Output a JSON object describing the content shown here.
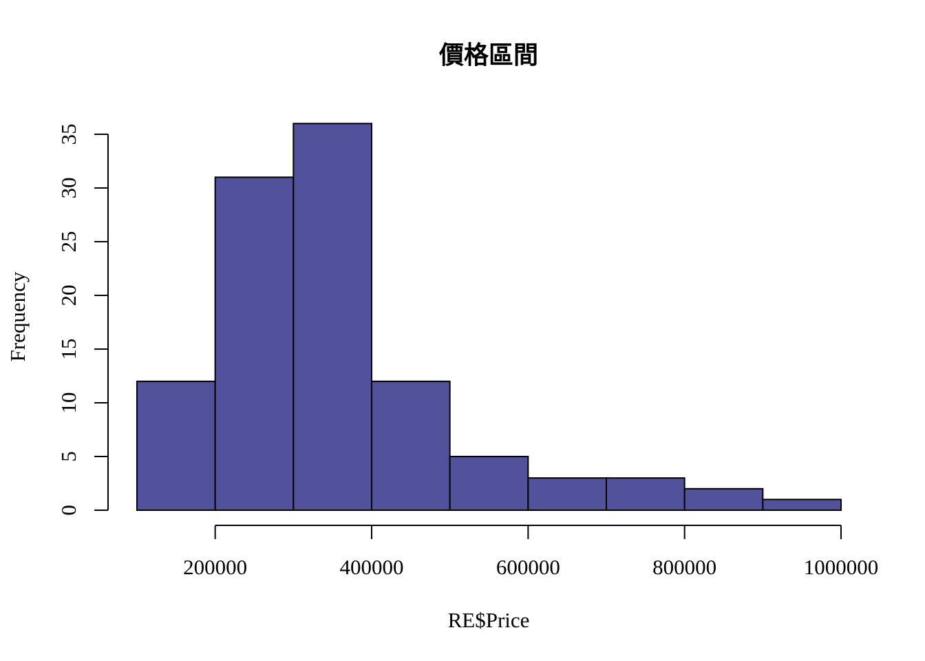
{
  "chart_data": {
    "type": "bar",
    "title": "價格區間",
    "xlabel": "RE$Price",
    "ylabel": "Frequency",
    "bin_edges": [
      100000,
      200000,
      300000,
      400000,
      500000,
      600000,
      700000,
      800000,
      900000,
      1000000
    ],
    "values": [
      12,
      31,
      36,
      12,
      5,
      3,
      3,
      2,
      1
    ],
    "xticks": [
      200000,
      400000,
      600000,
      800000,
      1000000
    ],
    "xtick_labels": [
      "200000",
      "400000",
      "600000",
      "800000",
      "1000000"
    ],
    "yticks": [
      0,
      5,
      10,
      15,
      20,
      25,
      30,
      35
    ],
    "ytick_labels": [
      "0",
      "5",
      "10",
      "15",
      "20",
      "25",
      "30",
      "35"
    ],
    "bar_color": "#52519b",
    "grid": false
  }
}
